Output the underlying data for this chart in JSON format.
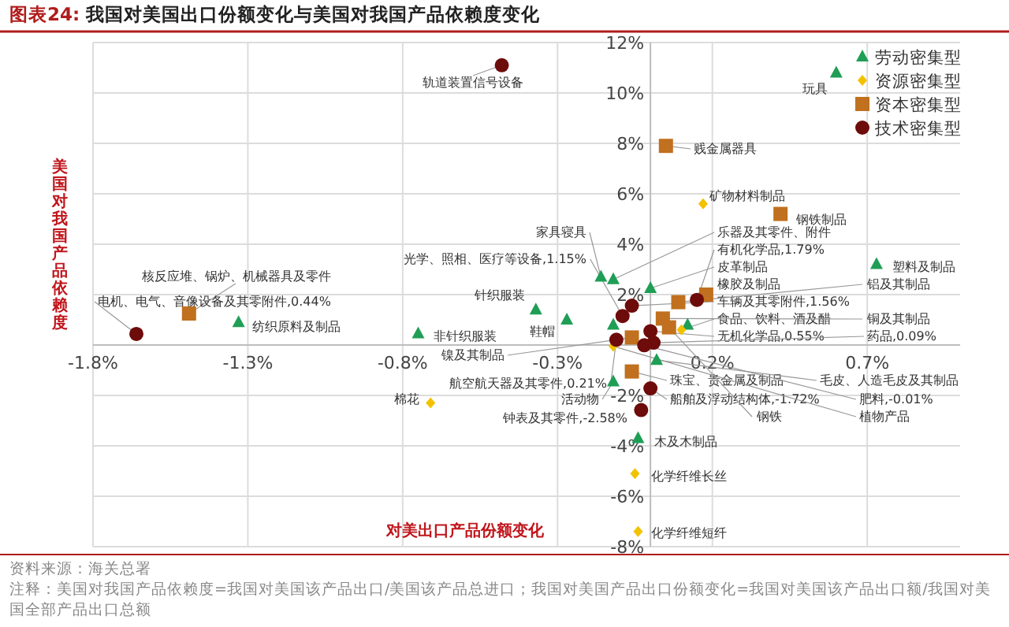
{
  "chart_data": {
    "type": "scatter",
    "title": "图表24: 我国对美国出口份额变化与美国对我国产品依赖度变化",
    "xlabel": "对美出口产品份额变化",
    "ylabel": "美国对我国产品依赖度",
    "xlim": [
      -1.8,
      1.0
    ],
    "ylim": [
      -8,
      12
    ],
    "xticks": [
      {
        "value": -1.8,
        "label": "-1.8%"
      },
      {
        "value": -1.3,
        "label": "-1.3%"
      },
      {
        "value": -0.8,
        "label": "-0.8%"
      },
      {
        "value": -0.3,
        "label": "-0.3%"
      },
      {
        "value": 0.2,
        "label": "0.2%"
      },
      {
        "value": 0.7,
        "label": "0.7%"
      }
    ],
    "yticks": [
      {
        "value": -8,
        "label": "-8%"
      },
      {
        "value": -6,
        "label": "-6%"
      },
      {
        "value": -4,
        "label": "-4%"
      },
      {
        "value": -2,
        "label": "-2%"
      },
      {
        "value": 0,
        "label": null
      },
      {
        "value": 2,
        "label": "2%"
      },
      {
        "value": 4,
        "label": "4%"
      },
      {
        "value": 6,
        "label": "6%"
      },
      {
        "value": 8,
        "label": "8%"
      },
      {
        "value": 10,
        "label": "10%"
      },
      {
        "value": 12,
        "label": "12%"
      }
    ],
    "grid": true,
    "legend": "top right",
    "series": [
      {
        "name": "劳动密集型",
        "color": "#1f9e55",
        "marker": "triangle",
        "x": [
          0.6,
          0.73,
          -0.16,
          -0.12,
          0,
          -0.37,
          -0.27,
          -1.33,
          -0.75,
          -0.12,
          0.12,
          0.02,
          -0.12,
          -0.04
        ],
        "values": [
          10.8,
          3.2,
          2.7,
          2.6,
          2.25,
          1.4,
          1.0,
          0.9,
          0.45,
          0.8,
          0.8,
          -0.6,
          -1.45,
          -3.7
        ]
      },
      {
        "name": "资源密集型",
        "color": "#f2c200",
        "marker": "diamond",
        "x": [
          0.17,
          0.1,
          -0.12,
          -0.71,
          -0.05,
          -0.04
        ],
        "values": [
          5.6,
          0.6,
          -0.05,
          -2.3,
          -5.1,
          -7.4
        ]
      },
      {
        "name": "资本密集型",
        "color": "#c0701e",
        "marker": "square",
        "x": [
          0.05,
          0.42,
          -1.49,
          0.18,
          0.09,
          0.04,
          0.06,
          -0.06,
          -0.06
        ],
        "values": [
          7.9,
          5.2,
          1.25,
          2.0,
          1.7,
          1.05,
          0.7,
          0.3,
          -1.05
        ]
      },
      {
        "name": "技术密集型",
        "color": "#6e0b0b",
        "marker": "circle",
        "x": [
          -0.48,
          -1.66,
          0.15,
          -0.06,
          -0.09,
          0.0,
          -0.11,
          0.01,
          -0.02,
          0,
          -0.03
        ],
        "values": [
          11.1,
          0.44,
          1.79,
          1.56,
          1.15,
          0.55,
          0.21,
          0.09,
          -0.01,
          -1.72,
          -2.58
        ]
      }
    ],
    "annotations": [
      {
        "text": "轨道装置信号设备",
        "x": -0.48,
        "y": 11.1
      },
      {
        "text": "玩具",
        "x": 0.6,
        "y": 10.8
      },
      {
        "text": "贱金属器具",
        "x": 0.05,
        "y": 7.9
      },
      {
        "text": "矿物材料制品",
        "x": 0.17,
        "y": 5.6
      },
      {
        "text": "钢铁制品",
        "x": 0.42,
        "y": 5.2
      },
      {
        "text": "塑料及制品",
        "x": 0.73,
        "y": 3.2
      },
      {
        "text": "核反应堆、锅炉、机械器具及零件",
        "x": -1.49,
        "y": 1.25
      },
      {
        "text": "电机、电气、音像设备及其零附件,0.44%",
        "x": -1.66,
        "y": 0.44
      },
      {
        "text": "纺织原料及制品",
        "x": -1.33,
        "y": 0.9
      },
      {
        "text": "非针织服装",
        "x": -0.75,
        "y": 0.45
      },
      {
        "text": "针织服装",
        "x": -0.37,
        "y": 1.4
      },
      {
        "text": "鞋帽",
        "x": -0.27,
        "y": 1.0
      },
      {
        "text": "家具寝具",
        "x": -0.16,
        "y": 2.7
      },
      {
        "text": "光学、照相、医疗等设备,1.15%",
        "x": -0.09,
        "y": 1.15
      },
      {
        "text": "乐器及其零件、附件",
        "x": -0.12,
        "y": 2.6
      },
      {
        "text": "有机化学品,1.79%",
        "x": 0.15,
        "y": 1.79
      },
      {
        "text": "皮革制品",
        "x": 0,
        "y": 2.25
      },
      {
        "text": "橡胶及制品",
        "x": 0.18,
        "y": 2.0
      },
      {
        "text": "车辆及其零附件,1.56%",
        "x": -0.06,
        "y": 1.56
      },
      {
        "text": "食品、饮料、酒及醋",
        "x": 0.1,
        "y": 0.6
      },
      {
        "text": "无机化学品,0.55%",
        "x": 0.0,
        "y": 0.55
      },
      {
        "text": "铝及其制品",
        "x": 0.09,
        "y": 1.7
      },
      {
        "text": "铜及其制品",
        "x": 0.04,
        "y": 1.05
      },
      {
        "text": "药品,0.09%",
        "x": 0.01,
        "y": 0.09
      },
      {
        "text": "镍及其制品",
        "x": -0.06,
        "y": 0.3
      },
      {
        "text": "航空航天器及其零件,0.21%",
        "x": -0.11,
        "y": 0.21
      },
      {
        "text": "棉花",
        "x": -0.71,
        "y": -2.3
      },
      {
        "text": "活动物",
        "x": -0.12,
        "y": -1.45
      },
      {
        "text": "钟表及其零件,-2.58%",
        "x": -0.03,
        "y": -2.58
      },
      {
        "text": "珠宝、贵金属及制品",
        "x": -0.06,
        "y": -1.05
      },
      {
        "text": "船舶及浮动结构体,-1.72%",
        "x": 0,
        "y": -1.72
      },
      {
        "text": "毛皮、人造毛皮及其制品",
        "x": 0.02,
        "y": -0.6
      },
      {
        "text": "肥料,-0.01%",
        "x": -0.02,
        "y": -0.01
      },
      {
        "text": "植物产品",
        "x": -0.12,
        "y": -0.05
      },
      {
        "text": "钢铁",
        "x": 0.06,
        "y": 0.7
      },
      {
        "text": "木及木制品",
        "x": -0.04,
        "y": -3.7
      },
      {
        "text": "化学纤维长丝",
        "x": -0.05,
        "y": -5.1
      },
      {
        "text": "化学纤维短纤",
        "x": -0.04,
        "y": -7.4
      },
      "资料来源：海关总署",
      "注释：美国对我国产品依赖度=我国对美国该产品出口/美国该产品总进口；我国对美国产品出口份额变化=我国对美国该产品出口额/我国对美国全部产品出口总额"
    ]
  }
}
